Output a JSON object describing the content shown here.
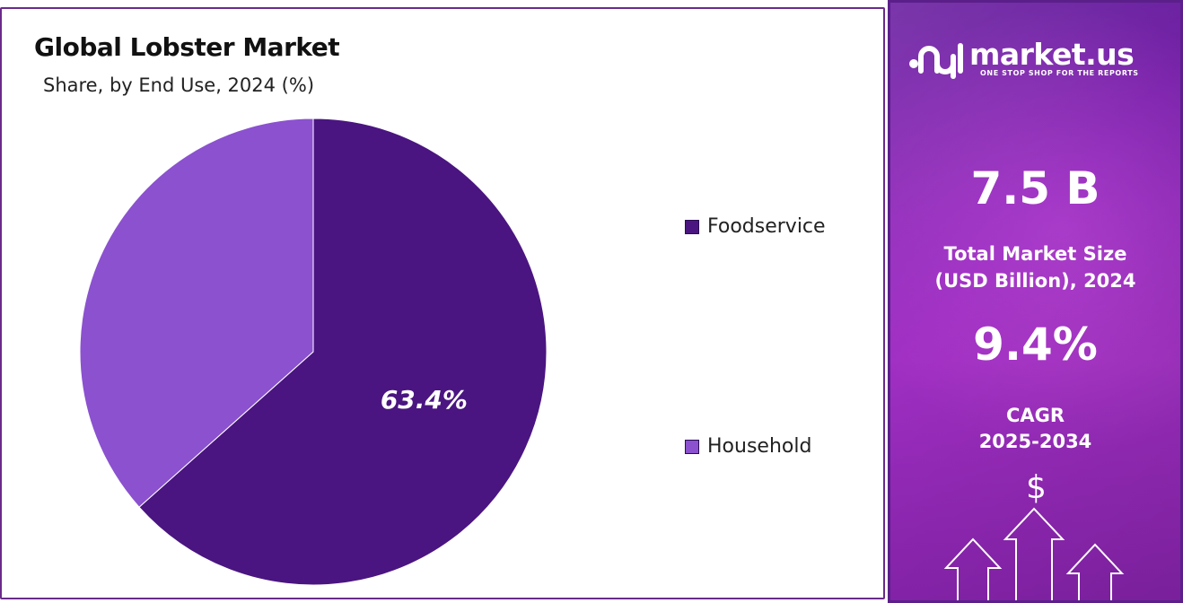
{
  "chart": {
    "title": "Global Lobster Market",
    "subtitle": "Share, by End Use, 2024 (%)"
  },
  "chart_data": {
    "type": "pie",
    "title": "Global Lobster Market",
    "subtitle": "Share, by End Use, 2024 (%)",
    "categories": [
      "Foodservice",
      "Household"
    ],
    "values": [
      63.4,
      36.6
    ],
    "colors": [
      "#4a1580",
      "#8b51cf"
    ],
    "data_labels": [
      "63.4%",
      ""
    ],
    "legend_placement": "right"
  },
  "sidebar": {
    "brand": "market.us",
    "tagline": "ONE STOP SHOP FOR THE REPORTS",
    "market_size_value": "7.5 B",
    "market_size_label_1": "Total Market Size",
    "market_size_label_2": "(USD Billion), 2024",
    "cagr_value": "9.4%",
    "cagr_label_1": "CAGR",
    "cagr_label_2": "2025-2034",
    "icons": [
      "dollar-icon",
      "up-arrow-icon"
    ],
    "colors": {
      "panel_top": "#6a1fa0",
      "panel_mid": "#a02fc3"
    }
  }
}
